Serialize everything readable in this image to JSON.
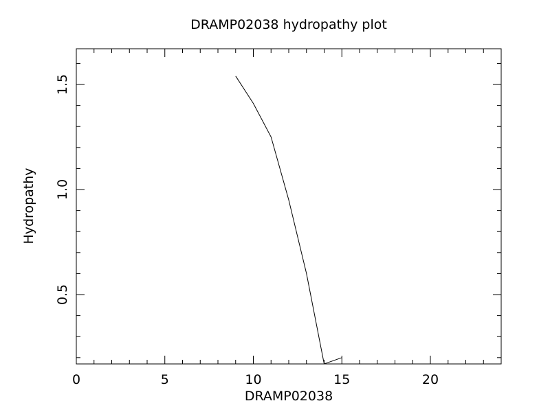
{
  "chart_data": {
    "type": "line",
    "title": "DRAMP02038 hydropathy plot",
    "xlabel": "DRAMP02038",
    "ylabel": "Hydropathy",
    "xlim": [
      0,
      24
    ],
    "ylim": [
      0.17,
      1.67
    ],
    "x_ticks": [
      {
        "value": 0,
        "label": "0"
      },
      {
        "value": 5,
        "label": "5"
      },
      {
        "value": 10,
        "label": "10"
      },
      {
        "value": 15,
        "label": "15"
      },
      {
        "value": 20,
        "label": "20"
      }
    ],
    "y_ticks": [
      {
        "value": 0.5,
        "label": "0.5"
      },
      {
        "value": 1.0,
        "label": "1.0"
      },
      {
        "value": 1.5,
        "label": "1.5"
      }
    ],
    "x_minor_step": 1,
    "y_minor_step": 0.1,
    "grid": false,
    "series": [
      {
        "x": [
          9,
          10,
          11,
          12,
          13,
          14,
          15
        ],
        "y": [
          1.54,
          1.41,
          1.25,
          0.95,
          0.6,
          0.17,
          0.2
        ]
      }
    ],
    "line_color": "#000000"
  }
}
